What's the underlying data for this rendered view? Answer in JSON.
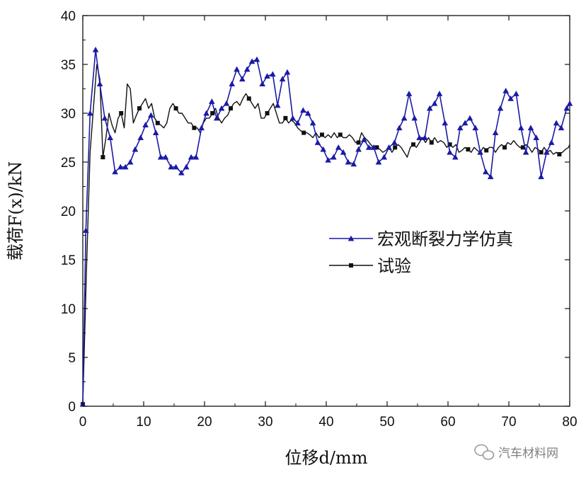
{
  "chart_data": {
    "type": "line",
    "xlabel": "位移d/mm",
    "ylabel": "载荷F(x)/kN",
    "xlim": [
      0,
      80
    ],
    "ylim": [
      0,
      40
    ],
    "x_ticks": [
      0,
      10,
      20,
      30,
      40,
      50,
      60,
      70,
      80
    ],
    "y_ticks": [
      0,
      5,
      10,
      15,
      20,
      25,
      30,
      35,
      40
    ],
    "grid": false,
    "legend_position": "center-right",
    "series": [
      {
        "name": "宏观断裂力学仿真",
        "color": "#1a1aa6",
        "marker": "triangle",
        "x": [
          0,
          0.5,
          1.2,
          2.1,
          2.8,
          3.6,
          4.5,
          5.3,
          6.2,
          7.0,
          7.8,
          8.6,
          9.5,
          10.3,
          11.2,
          12.0,
          12.8,
          13.6,
          14.5,
          15.3,
          16.2,
          17.0,
          17.8,
          18.6,
          19.5,
          20.3,
          21.2,
          22.0,
          22.8,
          23.6,
          24.5,
          25.3,
          26.2,
          27.0,
          27.8,
          28.6,
          29.5,
          30.3,
          31.2,
          32.0,
          32.8,
          33.6,
          34.5,
          35.3,
          36.2,
          37.0,
          37.8,
          38.6,
          39.5,
          40.3,
          41.2,
          42.0,
          42.8,
          43.6,
          44.5,
          45.3,
          46.2,
          47.0,
          47.8,
          48.6,
          49.5,
          50.3,
          51.2,
          52.0,
          52.8,
          53.6,
          54.5,
          55.3,
          56.2,
          57.0,
          57.8,
          58.6,
          59.5,
          60.3,
          61.2,
          62.0,
          62.8,
          63.6,
          64.5,
          65.3,
          66.2,
          67.0,
          67.8,
          68.6,
          69.5,
          70.3,
          71.2,
          72.0,
          72.8,
          73.6,
          74.5,
          75.3,
          76.2,
          77.0,
          77.8,
          78.6,
          79.5,
          80.0
        ],
        "y": [
          0.2,
          18.0,
          30.0,
          36.5,
          33.0,
          29.5,
          27.5,
          24.0,
          24.5,
          24.5,
          25.0,
          26.3,
          27.5,
          28.8,
          29.8,
          28.0,
          25.5,
          25.5,
          24.5,
          24.5,
          23.9,
          24.5,
          25.5,
          25.5,
          28.5,
          30.0,
          31.2,
          29.5,
          30.5,
          31.0,
          33.0,
          34.5,
          33.5,
          34.5,
          35.3,
          35.5,
          33.0,
          33.8,
          34.0,
          30.8,
          33.5,
          34.2,
          29.5,
          29.0,
          30.3,
          30.0,
          29.0,
          27.0,
          26.3,
          25.2,
          25.5,
          26.5,
          26.0,
          25.0,
          24.8,
          26.3,
          27.3,
          26.5,
          26.5,
          25.0,
          25.5,
          26.5,
          27.0,
          28.5,
          29.5,
          32.0,
          29.5,
          27.5,
          27.5,
          30.5,
          31.0,
          32.0,
          29.0,
          26.0,
          25.5,
          28.5,
          29.0,
          29.5,
          28.5,
          26.0,
          24.0,
          23.5,
          28.0,
          30.5,
          32.3,
          31.5,
          32.0,
          28.5,
          26.0,
          28.5,
          27.5,
          23.5,
          26.0,
          27.0,
          29.0,
          28.5,
          30.5,
          31.0
        ]
      },
      {
        "name": "试验",
        "color": "#111111",
        "marker": "square",
        "x": [
          0,
          0.6,
          1.2,
          1.8,
          2.3,
          2.8,
          3.3,
          3.8,
          4.3,
          4.8,
          5.3,
          5.8,
          6.3,
          6.8,
          7.3,
          7.8,
          8.3,
          8.8,
          9.3,
          9.8,
          10.3,
          10.8,
          11.3,
          11.8,
          12.3,
          12.8,
          13.3,
          13.8,
          14.3,
          14.8,
          15.3,
          15.8,
          16.3,
          16.8,
          17.3,
          17.8,
          18.3,
          18.8,
          19.3,
          19.8,
          20.3,
          20.8,
          21.3,
          21.8,
          22.3,
          22.8,
          23.3,
          23.8,
          24.3,
          24.8,
          25.3,
          25.8,
          26.3,
          26.8,
          27.3,
          27.8,
          28.3,
          28.8,
          29.3,
          29.8,
          30.3,
          30.8,
          31.3,
          31.8,
          32.3,
          32.8,
          33.3,
          33.8,
          34.3,
          34.8,
          35.3,
          35.8,
          36.3,
          36.8,
          37.3,
          37.8,
          38.3,
          38.8,
          39.3,
          39.8,
          40.3,
          40.8,
          41.3,
          41.8,
          42.3,
          42.8,
          43.3,
          43.8,
          44.3,
          44.8,
          45.3,
          45.8,
          46.3,
          46.8,
          47.3,
          47.8,
          48.3,
          48.8,
          49.3,
          49.8,
          50.3,
          50.8,
          51.3,
          51.8,
          52.3,
          52.8,
          53.3,
          53.8,
          54.3,
          54.8,
          55.3,
          55.8,
          56.3,
          56.8,
          57.3,
          57.8,
          58.3,
          58.8,
          59.3,
          59.8,
          60.3,
          60.8,
          61.3,
          61.8,
          62.3,
          62.8,
          63.3,
          63.8,
          64.3,
          64.8,
          65.3,
          65.8,
          66.3,
          66.8,
          67.3,
          67.8,
          68.3,
          68.8,
          69.3,
          69.8,
          70.3,
          70.8,
          71.3,
          71.8,
          72.3,
          72.8,
          73.3,
          73.8,
          74.3,
          74.8,
          75.3,
          75.8,
          76.3,
          76.8,
          77.3,
          77.8,
          78.3,
          78.8,
          79.3,
          79.8,
          80.0
        ],
        "y": [
          0.2,
          14.0,
          26.0,
          31.0,
          35.0,
          33.5,
          25.5,
          27.5,
          30.0,
          28.8,
          28.0,
          29.5,
          30.0,
          28.5,
          33.0,
          32.5,
          29.0,
          29.8,
          30.5,
          31.0,
          31.5,
          30.5,
          31.0,
          29.5,
          29.0,
          28.8,
          28.5,
          29.0,
          30.5,
          31.0,
          30.5,
          30.0,
          30.0,
          29.5,
          29.0,
          29.0,
          28.5,
          28.5,
          28.0,
          29.0,
          29.5,
          29.5,
          30.0,
          30.5,
          29.5,
          29.0,
          29.5,
          29.8,
          30.5,
          31.0,
          31.2,
          30.8,
          31.5,
          32.0,
          31.5,
          31.0,
          30.5,
          31.0,
          29.5,
          29.5,
          30.0,
          30.5,
          31.0,
          30.0,
          29.0,
          29.0,
          29.5,
          29.0,
          29.3,
          29.0,
          28.5,
          28.2,
          28.0,
          28.0,
          27.8,
          27.5,
          28.0,
          27.5,
          27.8,
          27.5,
          27.8,
          27.5,
          28.0,
          27.5,
          27.8,
          27.5,
          27.5,
          27.8,
          27.5,
          27.0,
          27.0,
          28.0,
          27.5,
          27.2,
          26.8,
          26.5,
          26.5,
          26.3,
          26.0,
          26.2,
          26.5,
          26.0,
          26.5,
          26.8,
          26.5,
          26.0,
          25.5,
          26.5,
          26.8,
          26.5,
          27.0,
          27.5,
          27.0,
          27.5,
          27.0,
          27.5,
          27.0,
          27.2,
          27.0,
          26.5,
          26.8,
          26.5,
          26.8,
          26.0,
          26.2,
          26.5,
          26.3,
          26.0,
          26.5,
          26.2,
          26.0,
          26.5,
          26.2,
          26.5,
          26.5,
          26.0,
          26.5,
          26.8,
          26.5,
          27.0,
          26.8,
          27.2,
          26.8,
          26.5,
          26.5,
          26.8,
          26.5,
          26.0,
          26.5,
          26.3,
          26.0,
          26.5,
          26.0,
          26.2,
          25.8,
          26.0,
          25.8,
          26.0,
          26.3,
          26.5,
          26.8
        ]
      }
    ]
  },
  "watermark": {
    "text": "汽车材料网",
    "icon": "wechat-icon"
  }
}
